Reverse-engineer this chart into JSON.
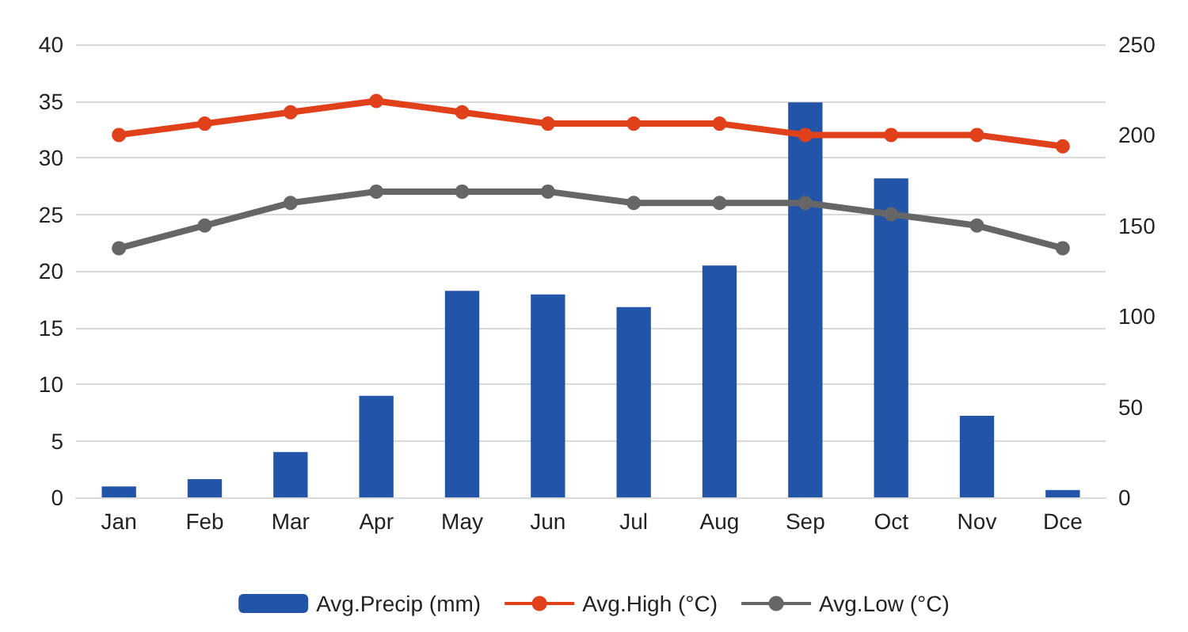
{
  "chart_data": {
    "type": "bar",
    "categories": [
      "Jan",
      "Feb",
      "Mar",
      "Apr",
      "May",
      "Jun",
      "Jul",
      "Aug",
      "Sep",
      "Oct",
      "Nov",
      "Dce"
    ],
    "series": [
      {
        "name": "Avg.Precip (mm)",
        "axis": "y2",
        "color": "#2255a8",
        "values": [
          6,
          10,
          25,
          56,
          114,
          112,
          105,
          128,
          218,
          176,
          45,
          4
        ]
      },
      {
        "name": "Avg.High (°C)",
        "type": "line",
        "color": "#e0401a",
        "values": [
          32,
          33,
          34,
          35,
          34,
          33,
          33,
          33,
          32,
          32,
          32,
          31
        ]
      },
      {
        "name": "Avg.Low (°C)",
        "type": "line",
        "color": "#666666",
        "values": [
          22,
          24,
          26,
          27,
          27,
          27,
          26,
          26,
          26,
          25,
          24,
          22
        ]
      }
    ],
    "ylim": [
      0,
      40
    ],
    "yticks": [
      0,
      5,
      10,
      15,
      20,
      25,
      30,
      35,
      40
    ],
    "y2lim": [
      0,
      250
    ],
    "y2ticks": [
      0,
      50,
      100,
      150,
      200,
      250
    ],
    "grid": "y",
    "legend": "bottom",
    "marker": "circle",
    "line_style": "solid"
  }
}
